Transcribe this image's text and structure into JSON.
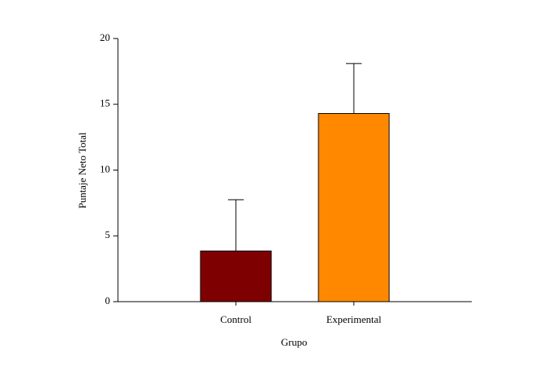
{
  "chart_data": {
    "type": "bar",
    "categories": [
      "Control",
      "Experimental"
    ],
    "values": [
      3.85,
      14.3
    ],
    "errors": [
      3.9,
      3.8
    ],
    "colors": [
      "#7f0000",
      "#ff8800"
    ],
    "xlabel": "Grupo",
    "ylabel": "Puntaje Neto Total",
    "ylim": [
      0,
      20
    ],
    "yticks": [
      0,
      5,
      10,
      15,
      20
    ],
    "grid": false
  }
}
